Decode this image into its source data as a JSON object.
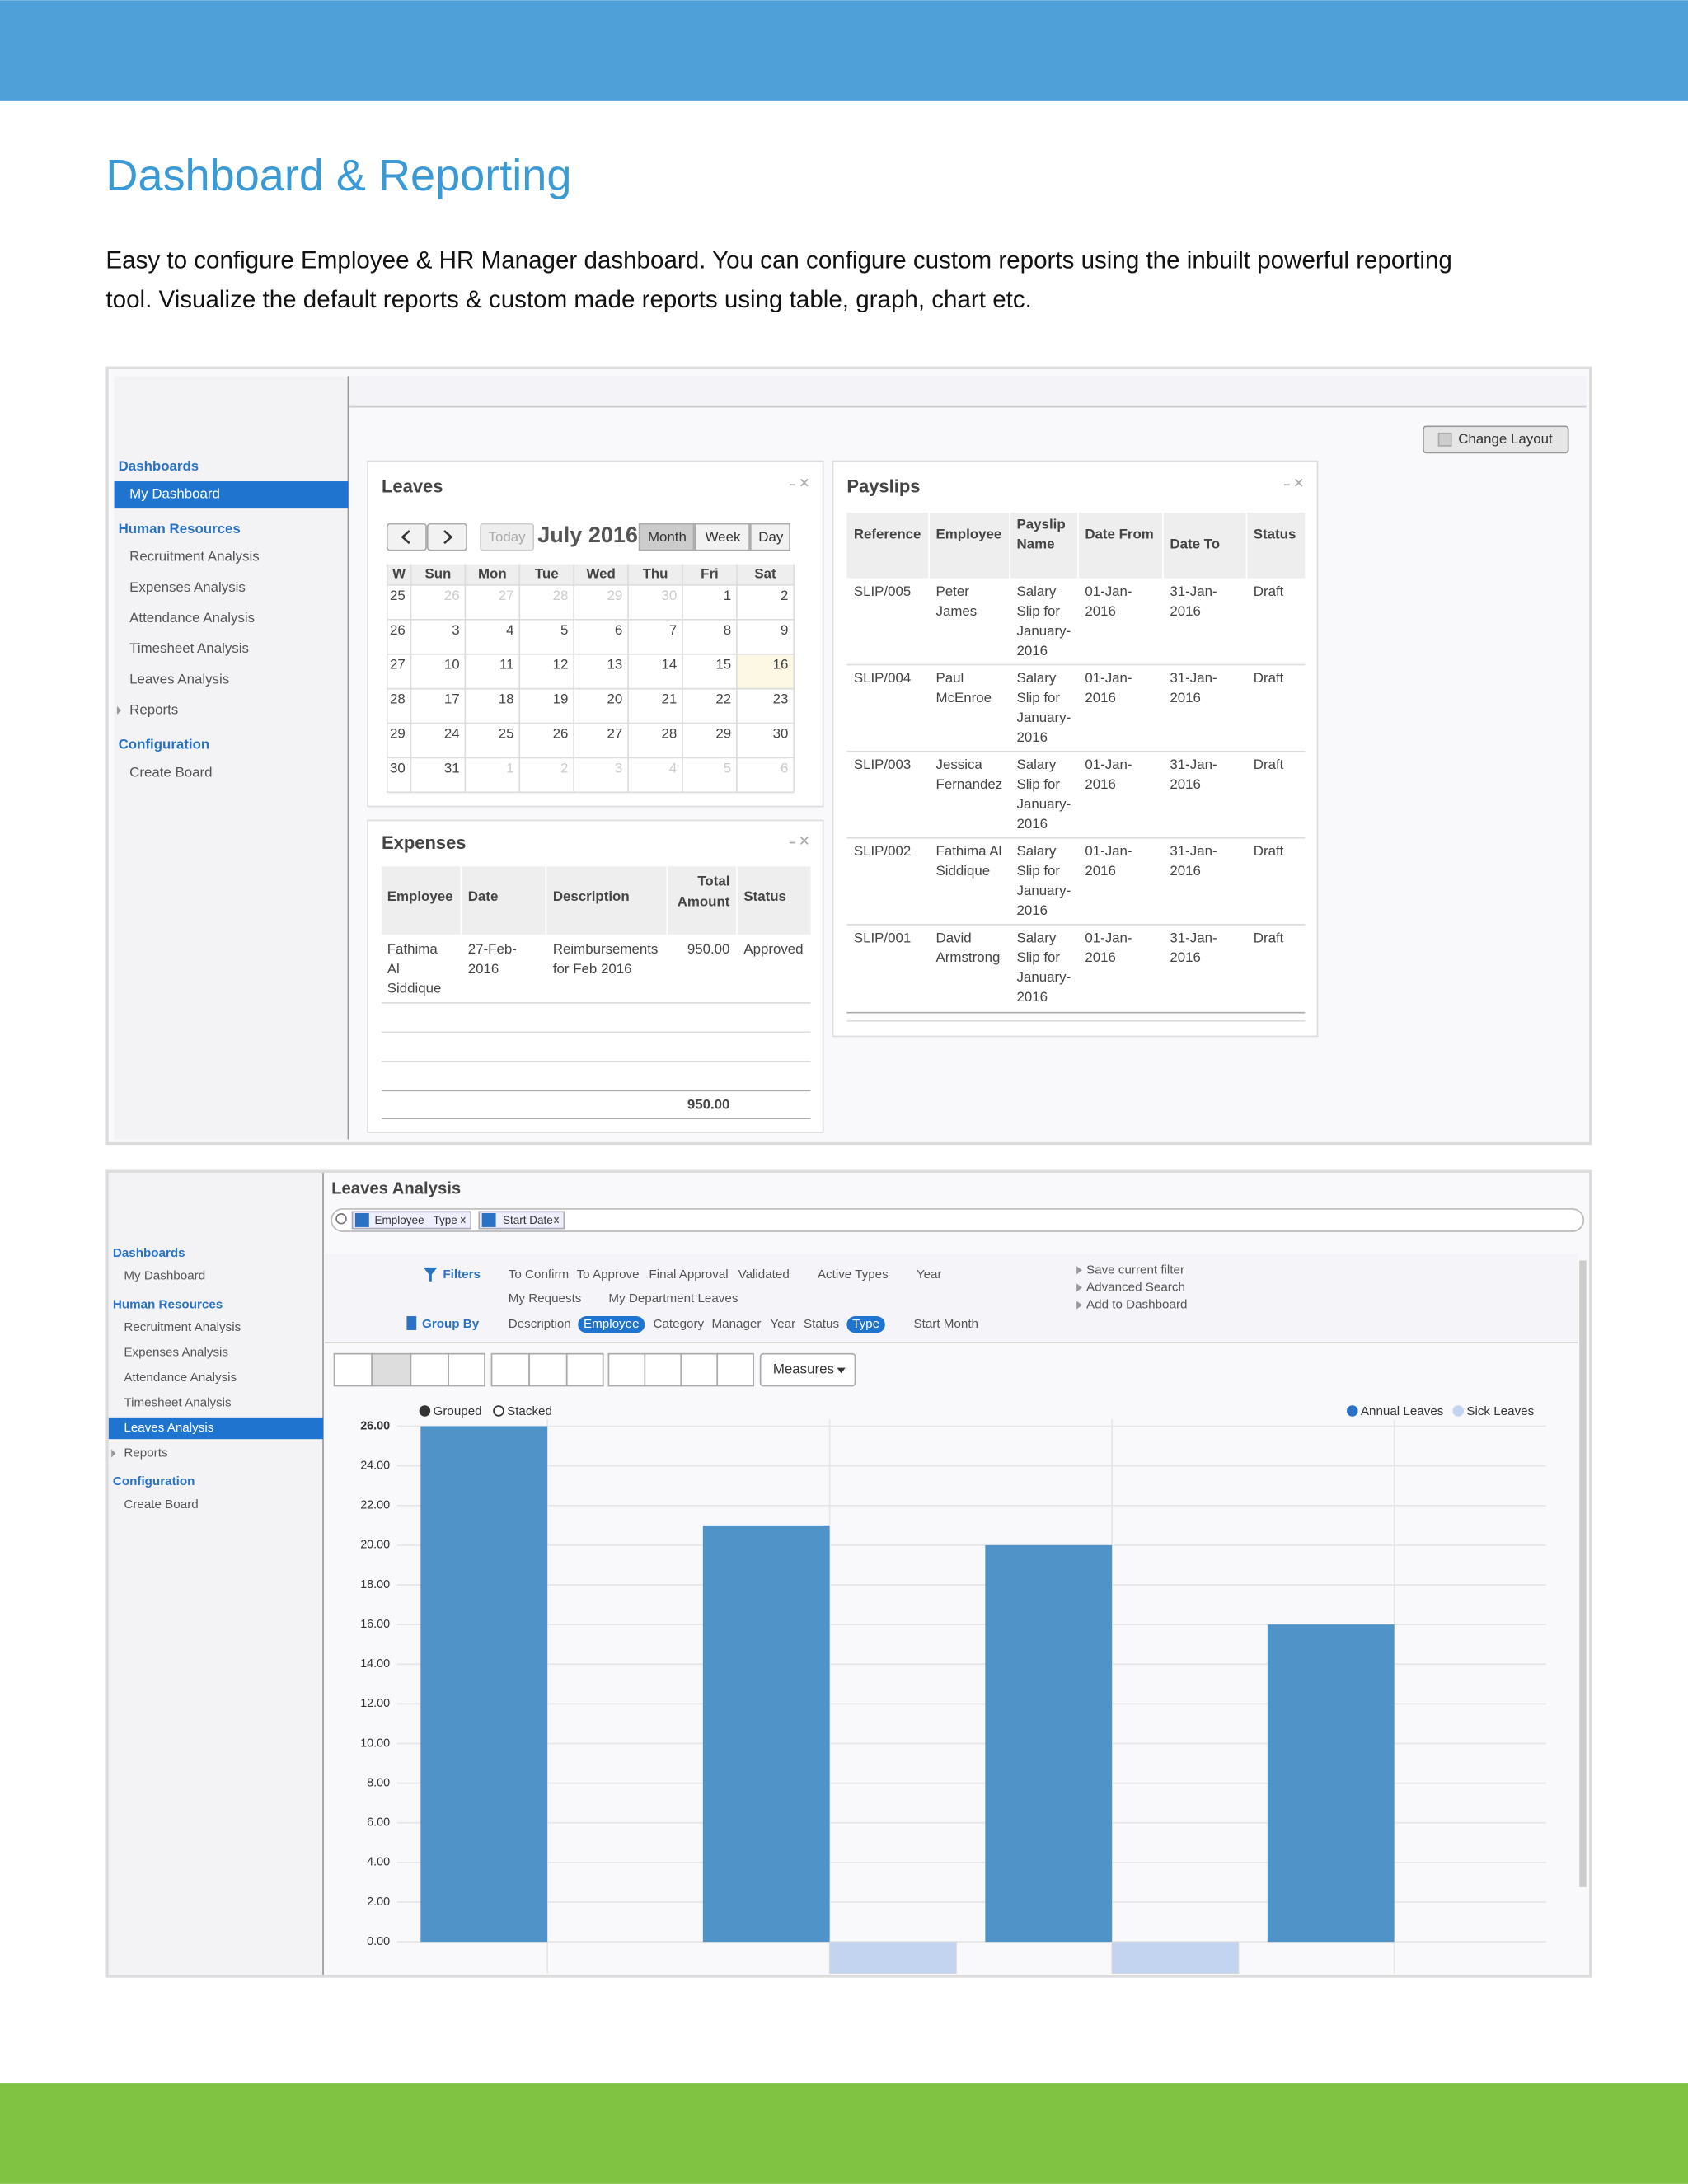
{
  "header": {
    "title": "Dashboard & Reporting",
    "intro": [
      "Easy to configure Employee & HR Manager dashboard. You can configure custom reports using the inbuilt powerful reporting",
      "tool. Visualize the default reports & custom made reports using table, graph, chart etc."
    ]
  },
  "sidebar": {
    "sections": [
      {
        "title": "Dashboards",
        "items": [
          "My Dashboard"
        ]
      },
      {
        "title": "Human Resources",
        "items": [
          "Recruitment Analysis",
          "Expenses Analysis",
          "Attendance Analysis",
          "Timesheet Analysis",
          "Leaves Analysis",
          "Reports"
        ]
      },
      {
        "title": "Configuration",
        "items": [
          "Create Board"
        ]
      }
    ]
  },
  "dashboard": {
    "active_item": [
      0,
      0
    ],
    "change_layout": "Change Layout",
    "leaves": {
      "title": "Leaves",
      "today": "Today",
      "month": "July 2016",
      "views": [
        "Month",
        "Week",
        "Day"
      ],
      "active_view": 0,
      "weekdays": [
        "W",
        "Sun",
        "Mon",
        "Tue",
        "Wed",
        "Thu",
        "Fri",
        "Sat"
      ],
      "weeks": [
        [
          25,
          26,
          27,
          28,
          29,
          30,
          1,
          2
        ],
        [
          26,
          3,
          4,
          5,
          6,
          7,
          8,
          9
        ],
        [
          27,
          10,
          11,
          12,
          13,
          14,
          15,
          16
        ],
        [
          28,
          17,
          18,
          19,
          20,
          21,
          22,
          23
        ],
        [
          29,
          24,
          25,
          26,
          27,
          28,
          29,
          30
        ],
        [
          30,
          31,
          1,
          2,
          3,
          4,
          5,
          6
        ]
      ],
      "highlight": [
        2,
        7
      ]
    },
    "expenses": {
      "title": "Expenses",
      "columns": [
        "Employee",
        "Date",
        "Description",
        [
          "Total",
          "Amount"
        ],
        "Status"
      ],
      "rows": [
        [
          [
            "Fathima",
            "Al",
            "Siddique"
          ],
          [
            "27-Feb-",
            "2016"
          ],
          [
            "Reimbursements",
            "for Feb 2016"
          ],
          "950.00",
          "Approved"
        ]
      ],
      "total": "950.00"
    },
    "payslips": {
      "title": "Payslips",
      "columns": [
        "Reference",
        "Employee",
        [
          "Payslip",
          "Name"
        ],
        "Date From",
        "Date To",
        "Status"
      ],
      "rows": [
        [
          "SLIP/005",
          [
            "Peter",
            "James"
          ],
          [
            "Salary",
            "Slip for",
            "January-",
            "2016"
          ],
          [
            "01-Jan-",
            "2016"
          ],
          [
            "31-Jan-",
            "2016"
          ],
          "Draft"
        ],
        [
          "SLIP/004",
          [
            "Paul",
            "McEnroe"
          ],
          [
            "Salary",
            "Slip for",
            "January-",
            "2016"
          ],
          [
            "01-Jan-",
            "2016"
          ],
          [
            "31-Jan-",
            "2016"
          ],
          "Draft"
        ],
        [
          "SLIP/003",
          [
            "Jessica",
            "Fernandez"
          ],
          [
            "Salary",
            "Slip for",
            "January-",
            "2016"
          ],
          [
            "01-Jan-",
            "2016"
          ],
          [
            "31-Jan-",
            "2016"
          ],
          "Draft"
        ],
        [
          "SLIP/002",
          [
            "Fathima Al",
            "Siddique"
          ],
          [
            "Salary",
            "Slip for",
            "January-",
            "2016"
          ],
          [
            "01-Jan-",
            "2016"
          ],
          [
            "31-Jan-",
            "2016"
          ],
          "Draft"
        ],
        [
          "SLIP/001",
          [
            "David",
            "Armstrong"
          ],
          [
            "Salary",
            "Slip for",
            "January-",
            "2016"
          ],
          [
            "01-Jan-",
            "2016"
          ],
          [
            "31-Jan-",
            "2016"
          ],
          "Draft"
        ]
      ]
    }
  },
  "analysis": {
    "active_item": [
      1,
      4
    ],
    "title": "Leaves Analysis",
    "facets": [
      [
        "Employee",
        "Type"
      ],
      [
        "Start Date"
      ]
    ],
    "filters_label": "Filters",
    "filters": [
      [
        "To Confirm",
        "To Approve",
        "Final Approval",
        "Validated",
        "Active Types",
        "Year"
      ],
      [
        "My Requests",
        "My Department Leaves"
      ]
    ],
    "group_by_label": "Group By",
    "group_by": [
      "Description",
      "Employee",
      "Category",
      "Manager",
      "Year",
      "Status",
      "Type",
      "Start Month"
    ],
    "group_by_active": [
      1,
      6
    ],
    "options": [
      "Save current filter",
      "Advanced Search",
      "Add to Dashboard"
    ],
    "measures": "Measures",
    "modes": [
      "Grouped",
      "Stacked"
    ],
    "active_mode": 0
  },
  "chart_data": {
    "type": "bar",
    "categories": [
      null,
      null,
      null,
      null
    ],
    "series": [
      {
        "name": "Annual Leaves",
        "color": "#4f93c8",
        "values": [
          26,
          21,
          20,
          16
        ]
      },
      {
        "name": "Sick Leaves",
        "color": "#c2d4ef",
        "values": [
          0,
          -1.6,
          -1.6,
          0
        ]
      }
    ],
    "ylim": [
      -1.6,
      26
    ],
    "yticks": [
      {
        "value": 0,
        "label": "0.00"
      },
      {
        "value": 2,
        "label": "2.00"
      },
      {
        "value": 4,
        "label": "4.00"
      },
      {
        "value": 6,
        "label": "6.00"
      },
      {
        "value": 8,
        "label": "8.00"
      },
      {
        "value": 10,
        "label": "10.00"
      },
      {
        "value": 12,
        "label": "12.00"
      },
      {
        "value": 14,
        "label": "14.00"
      },
      {
        "value": 16,
        "label": "16.00"
      },
      {
        "value": 18,
        "label": "18.00"
      },
      {
        "value": 20,
        "label": "20.00"
      },
      {
        "value": 22,
        "label": "22.00"
      },
      {
        "value": 24,
        "label": "24.00"
      },
      {
        "value": 26,
        "label": "26.00"
      }
    ],
    "grid": true,
    "legend": "top-right"
  }
}
